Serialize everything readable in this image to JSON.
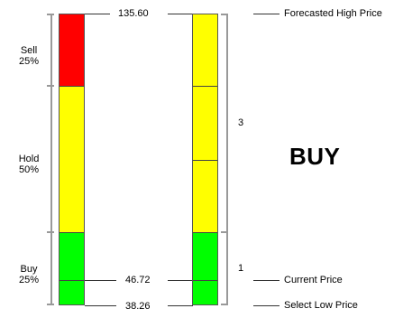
{
  "zones": {
    "sell": {
      "name": "Sell",
      "pct": "25%",
      "color": "#ff0000"
    },
    "hold": {
      "name": "Hold",
      "pct": "50%",
      "color": "#ffff00"
    },
    "buy": {
      "name": "Buy",
      "pct": "25%",
      "color": "#00ff00"
    }
  },
  "prices": {
    "high": "135.60",
    "current": "46.72",
    "low": "38.26"
  },
  "markers": {
    "high": "Forecasted High Price",
    "current": "Current Price",
    "low": "Select Low Price"
  },
  "scale_numbers": {
    "upper": "3",
    "lower": "1"
  },
  "recommendation": "BUY"
}
